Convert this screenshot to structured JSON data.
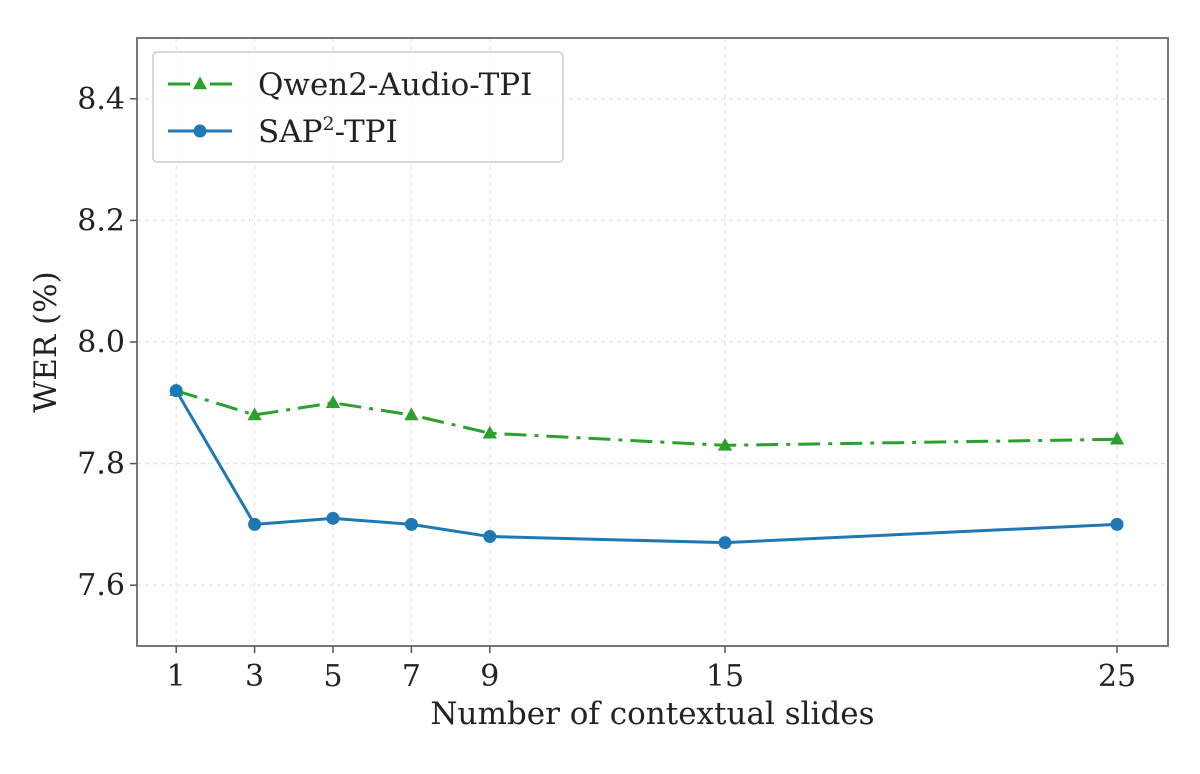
{
  "chart_data": {
    "type": "line",
    "title": "",
    "xlabel": "Number of contextual slides",
    "ylabel": "WER (%)",
    "x": [
      1,
      3,
      5,
      7,
      9,
      15,
      25
    ],
    "xticks": [
      "1",
      "3",
      "5",
      "7",
      "9",
      "15",
      "25"
    ],
    "yticks": [
      "7.6",
      "7.8",
      "8.0",
      "8.2",
      "8.4"
    ],
    "xlim": [
      0,
      26.3
    ],
    "ylim": [
      7.5,
      8.5
    ],
    "grid": true,
    "legend_position": "upper-left",
    "series": [
      {
        "name": "Qwen2-Audio-TPI",
        "label_parts": {
          "base": "Qwen2-Audio-TPI",
          "sup": "",
          "tail": ""
        },
        "values": [
          7.92,
          7.88,
          7.9,
          7.88,
          7.85,
          7.83,
          7.84
        ],
        "color": "#2ca02c",
        "line_style": "dash-dot",
        "marker": "triangle"
      },
      {
        "name": "SAP2-TPI",
        "label_parts": {
          "base": "SAP",
          "sup": "2",
          "tail": "-TPI"
        },
        "values": [
          7.92,
          7.7,
          7.71,
          7.7,
          7.68,
          7.67,
          7.7
        ],
        "color": "#1f77b4",
        "line_style": "solid",
        "marker": "circle"
      }
    ]
  }
}
